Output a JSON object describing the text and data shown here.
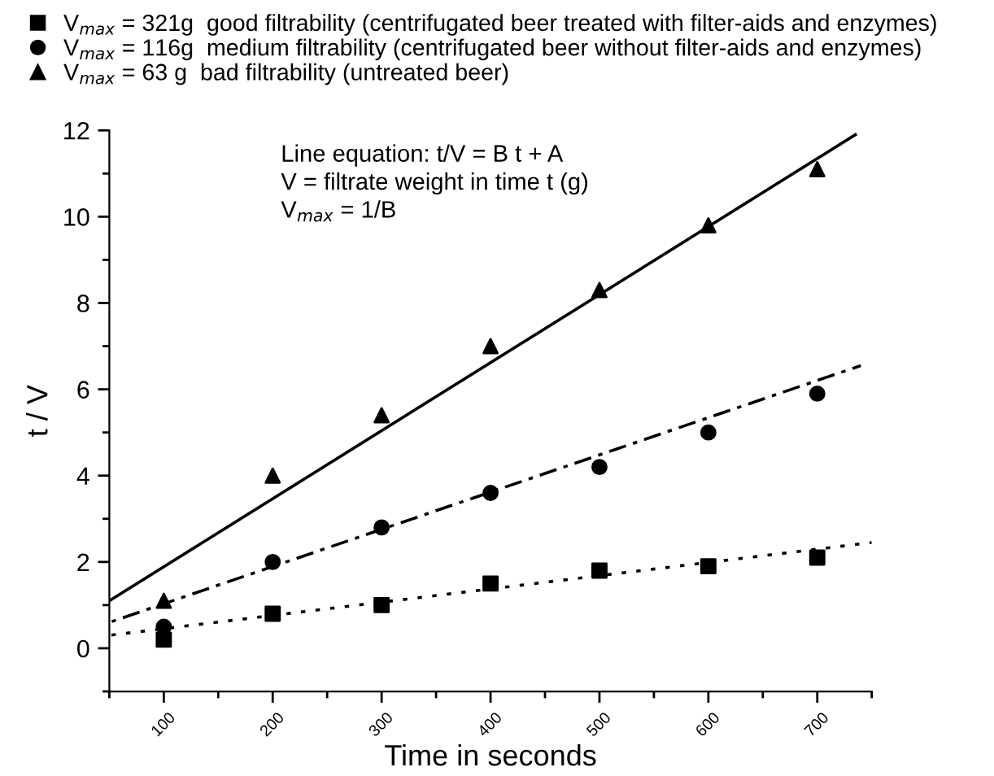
{
  "chart_data": {
    "type": "scatter",
    "xlabel": "Time in seconds",
    "ylabel": "t / V",
    "x": [
      100,
      200,
      300,
      400,
      500,
      600,
      700
    ],
    "series": [
      {
        "name": "V$_{max}$ = 321g  good filtrability (centrifugated beer treated with filter-aids and enzymes)",
        "color": "#000000",
        "marker": "square",
        "values": [
          0.2,
          0.8,
          1.0,
          1.5,
          1.8,
          1.9,
          2.1
        ]
      },
      {
        "name": "V$_{max}$ = 116g  medium filtrability (centrifugated beer without filter-aids and enzymes)",
        "color": "#000000",
        "marker": "circle",
        "values": [
          0.5,
          2.0,
          2.8,
          3.6,
          4.2,
          5.0,
          5.9
        ]
      },
      {
        "name": "V$_{max}$ = 63 g  bad filtrability (untreated beer)",
        "color": "#000000",
        "marker": "triangle",
        "values": [
          1.1,
          4.0,
          5.4,
          7.0,
          8.3,
          9.8,
          11.1
        ]
      },
      {
        "type": "line",
        "color": "#000000",
        "line_style": "dotted",
        "x": [
          50,
          750
        ],
        "values": [
          0.3,
          2.45
        ]
      },
      {
        "type": "line",
        "color": "#000000",
        "line_style": "dashdot",
        "x": [
          50,
          740
        ],
        "values": [
          0.6,
          6.55
        ]
      },
      {
        "type": "line",
        "color": "#000000",
        "line_style": "solid",
        "x": [
          50,
          735
        ],
        "values": [
          1.1,
          11.9
        ]
      }
    ],
    "annotations": [
      "Line equation: t/V = B t + A",
      "V = filtrate weight in time t (g)",
      "V$_{max}$ = 1/B"
    ],
    "xlim": [
      50,
      750
    ],
    "ylim": [
      -1,
      12
    ],
    "xticks": [
      {
        "value": 50,
        "label": null
      },
      100,
      {
        "value": 150,
        "label": null
      },
      200,
      {
        "value": 250,
        "label": null
      },
      300,
      {
        "value": 350,
        "label": null
      },
      400,
      {
        "value": 450,
        "label": null
      },
      500,
      {
        "value": 550,
        "label": null
      },
      600,
      {
        "value": 650,
        "label": null
      },
      700,
      {
        "value": 750,
        "label": null
      }
    ],
    "yticks": [
      {
        "value": -1,
        "label": null
      },
      0,
      {
        "value": 1,
        "label": null
      },
      2,
      {
        "value": 3,
        "label": null
      },
      4,
      {
        "value": 5,
        "label": null
      },
      6,
      {
        "value": 7,
        "label": null
      },
      8,
      {
        "value": 9,
        "label": null
      },
      10,
      {
        "value": 11,
        "label": null
      },
      12
    ],
    "legend": "top",
    "grid": false
  }
}
